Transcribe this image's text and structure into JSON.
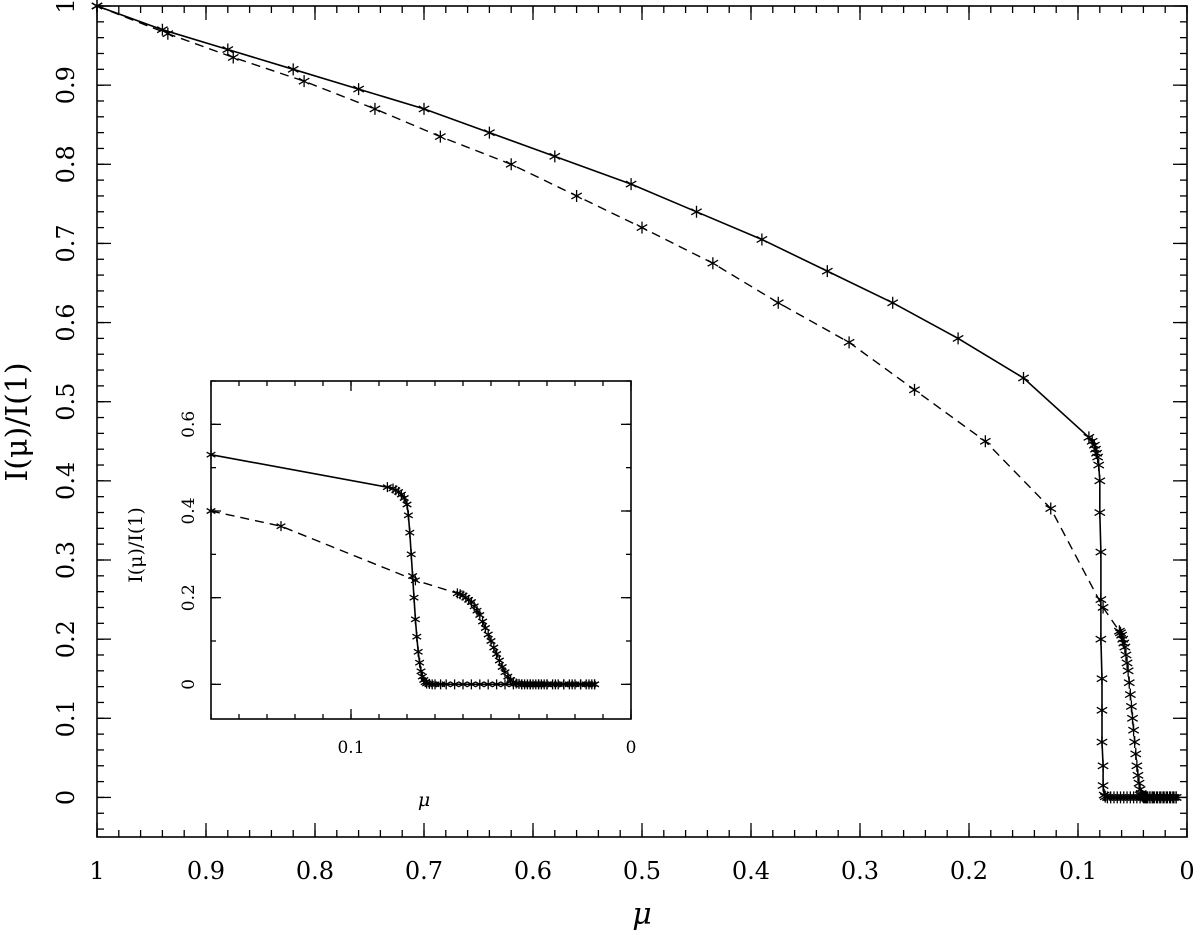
{
  "chart_data": [
    {
      "type": "line",
      "xlabel": "μ",
      "ylabel": "I(μ)/I(1)",
      "xlim": [
        1,
        0
      ],
      "ylim": [
        -0.05,
        1
      ],
      "x_ticks": [
        "1",
        "0.9",
        "0.8",
        "0.7",
        "0.6",
        "0.5",
        "0.4",
        "0.3",
        "0.2",
        "0.1",
        "0"
      ],
      "x_tick_values": [
        1,
        0.9,
        0.8,
        0.7,
        0.6,
        0.5,
        0.4,
        0.3,
        0.2,
        0.1,
        0
      ],
      "y_ticks": [
        "0",
        "0.1",
        "0.2",
        "0.3",
        "0.4",
        "0.5",
        "0.6",
        "0.7",
        "0.8",
        "0.9",
        "1"
      ],
      "y_tick_values": [
        0,
        0.1,
        0.2,
        0.3,
        0.4,
        0.5,
        0.6,
        0.7,
        0.8,
        0.9,
        1
      ],
      "minor_x_step": 0.02,
      "minor_y_step": 0.02,
      "grid": false,
      "series": [
        {
          "style": "solid",
          "marker": "asterisk",
          "x": [
            1.0,
            0.94,
            0.88,
            0.82,
            0.76,
            0.7,
            0.64,
            0.58,
            0.51,
            0.45,
            0.39,
            0.33,
            0.27,
            0.21,
            0.15,
            0.09,
            0.087,
            0.085,
            0.084,
            0.083,
            0.082,
            0.081,
            0.08,
            0.08,
            0.079,
            0.079,
            0.079,
            0.078,
            0.078,
            0.078,
            0.077,
            0.077,
            0.076,
            0.075,
            0.073,
            0.07,
            0.067,
            0.064,
            0.061,
            0.058,
            0.055,
            0.052,
            0.049,
            0.046,
            0.043,
            0.04,
            0.037,
            0.034,
            0.031,
            0.028,
            0.025,
            0.022,
            0.019,
            0.016,
            0.013,
            0.01
          ],
          "y": [
            1.0,
            0.97,
            0.945,
            0.92,
            0.895,
            0.87,
            0.84,
            0.81,
            0.775,
            0.74,
            0.705,
            0.665,
            0.625,
            0.58,
            0.53,
            0.455,
            0.45,
            0.445,
            0.44,
            0.435,
            0.43,
            0.42,
            0.4,
            0.36,
            0.31,
            0.25,
            0.2,
            0.15,
            0.11,
            0.07,
            0.04,
            0.015,
            0.003,
            0.001,
            0,
            0,
            0,
            0,
            0,
            0,
            0,
            0,
            0,
            0,
            0,
            0,
            0,
            0,
            0,
            0,
            0,
            0,
            0,
            0,
            0,
            0
          ]
        },
        {
          "style": "dashed",
          "marker": "asterisk",
          "x": [
            1.0,
            0.935,
            0.875,
            0.81,
            0.745,
            0.685,
            0.62,
            0.56,
            0.5,
            0.435,
            0.375,
            0.31,
            0.25,
            0.185,
            0.125,
            0.077,
            0.062,
            0.061,
            0.06,
            0.059,
            0.058,
            0.057,
            0.056,
            0.055,
            0.054,
            0.053,
            0.052,
            0.051,
            0.05,
            0.049,
            0.048,
            0.047,
            0.046,
            0.045,
            0.044,
            0.043,
            0.042,
            0.041,
            0.04,
            0.039,
            0.038,
            0.037,
            0.036,
            0.034,
            0.032,
            0.03,
            0.027,
            0.024,
            0.021,
            0.018,
            0.015,
            0.012,
            0.01
          ],
          "y": [
            1.0,
            0.965,
            0.935,
            0.905,
            0.87,
            0.835,
            0.8,
            0.76,
            0.72,
            0.675,
            0.625,
            0.575,
            0.515,
            0.45,
            0.365,
            0.24,
            0.21,
            0.208,
            0.205,
            0.2,
            0.195,
            0.19,
            0.18,
            0.17,
            0.16,
            0.145,
            0.13,
            0.115,
            0.1,
            0.085,
            0.07,
            0.055,
            0.04,
            0.028,
            0.018,
            0.01,
            0.005,
            0.002,
            0.001,
            0,
            0,
            0,
            0,
            0,
            0,
            0,
            0,
            0,
            0,
            0,
            0,
            0,
            0
          ]
        }
      ]
    },
    {
      "type": "line",
      "inset": true,
      "xlabel": "μ",
      "ylabel": "I(μ)/I(1)",
      "xlim": [
        0.15,
        0
      ],
      "ylim": [
        -0.08,
        0.7
      ],
      "x_ticks": [
        "0.1",
        "0"
      ],
      "x_tick_values": [
        0.1,
        0
      ],
      "y_ticks": [
        "0",
        "0.2",
        "0.4",
        "0.6"
      ],
      "y_tick_values": [
        0,
        0.2,
        0.4,
        0.6
      ],
      "minor_x_step": 0.01,
      "minor_y_step": 0.1,
      "grid": false,
      "series": [
        {
          "style": "solid",
          "marker": "asterisk",
          "x": [
            0.15,
            0.087,
            0.085,
            0.084,
            0.083,
            0.082,
            0.081,
            0.08,
            0.0795,
            0.079,
            0.0785,
            0.078,
            0.0775,
            0.077,
            0.0765,
            0.076,
            0.0755,
            0.075,
            0.0745,
            0.074,
            0.0735,
            0.073,
            0.072,
            0.071,
            0.07,
            0.068,
            0.066,
            0.063,
            0.06,
            0.057,
            0.054,
            0.051,
            0.048,
            0.045,
            0.042,
            0.039,
            0.036,
            0.033,
            0.03,
            0.027,
            0.024,
            0.021,
            0.018,
            0.015,
            0.013
          ],
          "y": [
            0.53,
            0.455,
            0.452,
            0.448,
            0.444,
            0.438,
            0.43,
            0.415,
            0.39,
            0.35,
            0.3,
            0.25,
            0.2,
            0.15,
            0.11,
            0.075,
            0.05,
            0.03,
            0.018,
            0.01,
            0.005,
            0.002,
            0.001,
            0,
            0,
            0,
            0,
            0,
            0,
            0,
            0,
            0,
            0,
            0,
            0,
            0,
            0,
            0,
            0,
            0,
            0,
            0,
            0,
            0,
            0
          ]
        },
        {
          "style": "dashed",
          "marker": "asterisk",
          "x": [
            0.15,
            0.125,
            0.077,
            0.062,
            0.061,
            0.06,
            0.059,
            0.058,
            0.057,
            0.056,
            0.055,
            0.054,
            0.053,
            0.052,
            0.051,
            0.05,
            0.049,
            0.048,
            0.047,
            0.046,
            0.045,
            0.044,
            0.043,
            0.042,
            0.041,
            0.04,
            0.039,
            0.038,
            0.037,
            0.036,
            0.035,
            0.034,
            0.033,
            0.032,
            0.031,
            0.03,
            0.028,
            0.026,
            0.024,
            0.022,
            0.02,
            0.018,
            0.016,
            0.014,
            0.013
          ],
          "y": [
            0.4,
            0.365,
            0.24,
            0.21,
            0.208,
            0.205,
            0.2,
            0.195,
            0.19,
            0.18,
            0.17,
            0.16,
            0.145,
            0.13,
            0.115,
            0.1,
            0.085,
            0.07,
            0.055,
            0.04,
            0.028,
            0.018,
            0.01,
            0.005,
            0.002,
            0.001,
            0,
            0,
            0,
            0,
            0,
            0,
            0,
            0,
            0,
            0,
            0,
            0,
            0,
            0,
            0,
            0,
            0,
            0,
            0
          ]
        }
      ]
    }
  ]
}
